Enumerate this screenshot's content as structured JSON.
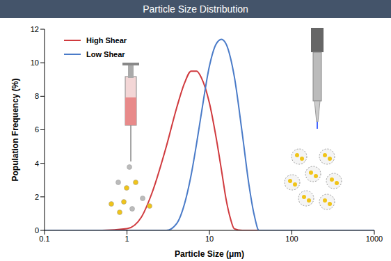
{
  "chart_data": {
    "type": "line",
    "title": "Particle Size Distribution",
    "x_label": "Particle Size (μm)",
    "y_label": "Population Frequency (%)",
    "log": "x",
    "grid": false,
    "legend": "upper left",
    "xlim": [
      0.1,
      1000
    ],
    "xticks": [
      0.1,
      1,
      10,
      100,
      1000
    ],
    "ylim": [
      0,
      12
    ],
    "yticks": [
      0,
      2,
      4,
      6,
      8,
      10,
      12
    ],
    "x": [
      0.1,
      0.5,
      1,
      1.5,
      2,
      3,
      4,
      5,
      6,
      7,
      8,
      10,
      12,
      14,
      16,
      18,
      20,
      25,
      30,
      35,
      40,
      100,
      1000
    ],
    "series": [
      {
        "name": "High Shear",
        "color": "#d03a3e",
        "values": [
          0,
          0,
          0.1,
          0.8,
          2.2,
          5.0,
          7.3,
          8.8,
          9.5,
          9.5,
          9.1,
          7.6,
          5.6,
          3.6,
          1.8,
          0.7,
          0.1,
          0,
          0,
          0,
          0,
          0,
          0
        ]
      },
      {
        "name": "Low Shear",
        "color": "#4a7bc8",
        "values": [
          0,
          0,
          0,
          0,
          0,
          0,
          0.4,
          1.6,
          3.3,
          5.2,
          7.0,
          9.8,
          11.1,
          11.4,
          11.1,
          10.3,
          9.2,
          5.8,
          2.8,
          0.9,
          0,
          0,
          0
        ]
      }
    ]
  }
}
